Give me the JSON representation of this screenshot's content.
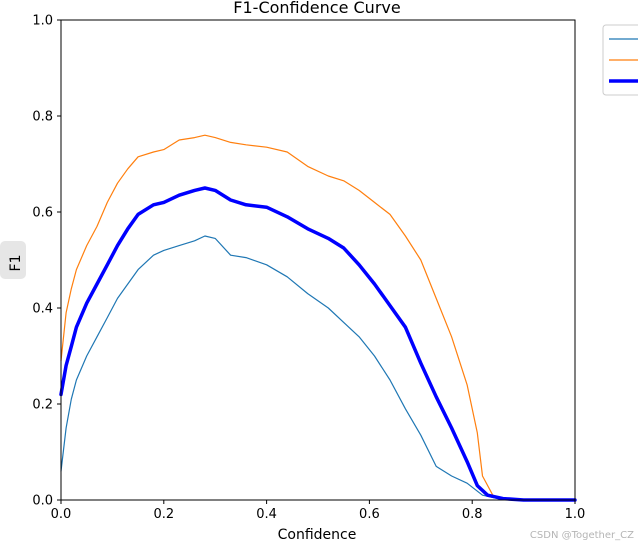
{
  "chart_data": {
    "type": "line",
    "title": "F1-Confidence Curve",
    "xlabel": "Confidence",
    "ylabel": "F1",
    "xlim": [
      0.0,
      1.0
    ],
    "ylim": [
      0.0,
      1.0
    ],
    "x_ticks": [
      "0.0",
      "0.2",
      "0.4",
      "0.6",
      "0.8",
      "1.0"
    ],
    "y_ticks": [
      "0.0",
      "0.2",
      "0.4",
      "0.6",
      "0.8",
      "1.0"
    ],
    "grid": false,
    "legend_position": "upper-right-outside",
    "series": [
      {
        "color": "#1f77b4",
        "linewidth": "thin",
        "points": [
          [
            0.0,
            0.06
          ],
          [
            0.01,
            0.15
          ],
          [
            0.02,
            0.21
          ],
          [
            0.03,
            0.25
          ],
          [
            0.05,
            0.3
          ],
          [
            0.07,
            0.34
          ],
          [
            0.09,
            0.38
          ],
          [
            0.11,
            0.42
          ],
          [
            0.13,
            0.45
          ],
          [
            0.15,
            0.48
          ],
          [
            0.18,
            0.51
          ],
          [
            0.2,
            0.52
          ],
          [
            0.23,
            0.53
          ],
          [
            0.26,
            0.54
          ],
          [
            0.28,
            0.55
          ],
          [
            0.3,
            0.545
          ],
          [
            0.33,
            0.51
          ],
          [
            0.36,
            0.505
          ],
          [
            0.4,
            0.49
          ],
          [
            0.44,
            0.465
          ],
          [
            0.48,
            0.43
          ],
          [
            0.52,
            0.4
          ],
          [
            0.55,
            0.37
          ],
          [
            0.58,
            0.34
          ],
          [
            0.61,
            0.3
          ],
          [
            0.64,
            0.25
          ],
          [
            0.67,
            0.19
          ],
          [
            0.7,
            0.135
          ],
          [
            0.73,
            0.07
          ],
          [
            0.76,
            0.05
          ],
          [
            0.79,
            0.035
          ],
          [
            0.82,
            0.01
          ],
          [
            0.85,
            0.003
          ],
          [
            0.9,
            0.0
          ],
          [
            1.0,
            0.0
          ]
        ]
      },
      {
        "color": "#ff7f0e",
        "linewidth": "thin",
        "points": [
          [
            0.0,
            0.29
          ],
          [
            0.01,
            0.39
          ],
          [
            0.02,
            0.44
          ],
          [
            0.03,
            0.48
          ],
          [
            0.05,
            0.53
          ],
          [
            0.07,
            0.57
          ],
          [
            0.09,
            0.62
          ],
          [
            0.11,
            0.66
          ],
          [
            0.13,
            0.69
          ],
          [
            0.15,
            0.715
          ],
          [
            0.18,
            0.725
          ],
          [
            0.2,
            0.73
          ],
          [
            0.23,
            0.75
          ],
          [
            0.26,
            0.755
          ],
          [
            0.28,
            0.76
          ],
          [
            0.3,
            0.755
          ],
          [
            0.33,
            0.745
          ],
          [
            0.36,
            0.74
          ],
          [
            0.4,
            0.735
          ],
          [
            0.44,
            0.725
          ],
          [
            0.48,
            0.695
          ],
          [
            0.52,
            0.675
          ],
          [
            0.55,
            0.665
          ],
          [
            0.58,
            0.645
          ],
          [
            0.61,
            0.62
          ],
          [
            0.64,
            0.595
          ],
          [
            0.67,
            0.55
          ],
          [
            0.7,
            0.5
          ],
          [
            0.73,
            0.42
          ],
          [
            0.76,
            0.34
          ],
          [
            0.79,
            0.24
          ],
          [
            0.81,
            0.14
          ],
          [
            0.82,
            0.05
          ],
          [
            0.84,
            0.01
          ],
          [
            0.86,
            0.003
          ],
          [
            0.9,
            0.0
          ],
          [
            1.0,
            0.0
          ]
        ]
      },
      {
        "color": "#0000ff",
        "linewidth": "thick",
        "points": [
          [
            0.0,
            0.22
          ],
          [
            0.01,
            0.28
          ],
          [
            0.02,
            0.32
          ],
          [
            0.03,
            0.36
          ],
          [
            0.05,
            0.41
          ],
          [
            0.07,
            0.45
          ],
          [
            0.09,
            0.49
          ],
          [
            0.11,
            0.53
          ],
          [
            0.13,
            0.565
          ],
          [
            0.15,
            0.595
          ],
          [
            0.18,
            0.615
          ],
          [
            0.2,
            0.62
          ],
          [
            0.23,
            0.635
          ],
          [
            0.26,
            0.645
          ],
          [
            0.28,
            0.65
          ],
          [
            0.3,
            0.645
          ],
          [
            0.33,
            0.625
          ],
          [
            0.36,
            0.615
          ],
          [
            0.4,
            0.61
          ],
          [
            0.44,
            0.59
          ],
          [
            0.48,
            0.565
          ],
          [
            0.52,
            0.545
          ],
          [
            0.55,
            0.525
          ],
          [
            0.58,
            0.49
          ],
          [
            0.61,
            0.45
          ],
          [
            0.64,
            0.405
          ],
          [
            0.67,
            0.36
          ],
          [
            0.7,
            0.285
          ],
          [
            0.73,
            0.215
          ],
          [
            0.76,
            0.15
          ],
          [
            0.79,
            0.08
          ],
          [
            0.81,
            0.03
          ],
          [
            0.83,
            0.01
          ],
          [
            0.86,
            0.003
          ],
          [
            0.9,
            0.0
          ],
          [
            1.0,
            0.0
          ]
        ]
      }
    ]
  },
  "watermark": "CSDN @Together_CZ"
}
